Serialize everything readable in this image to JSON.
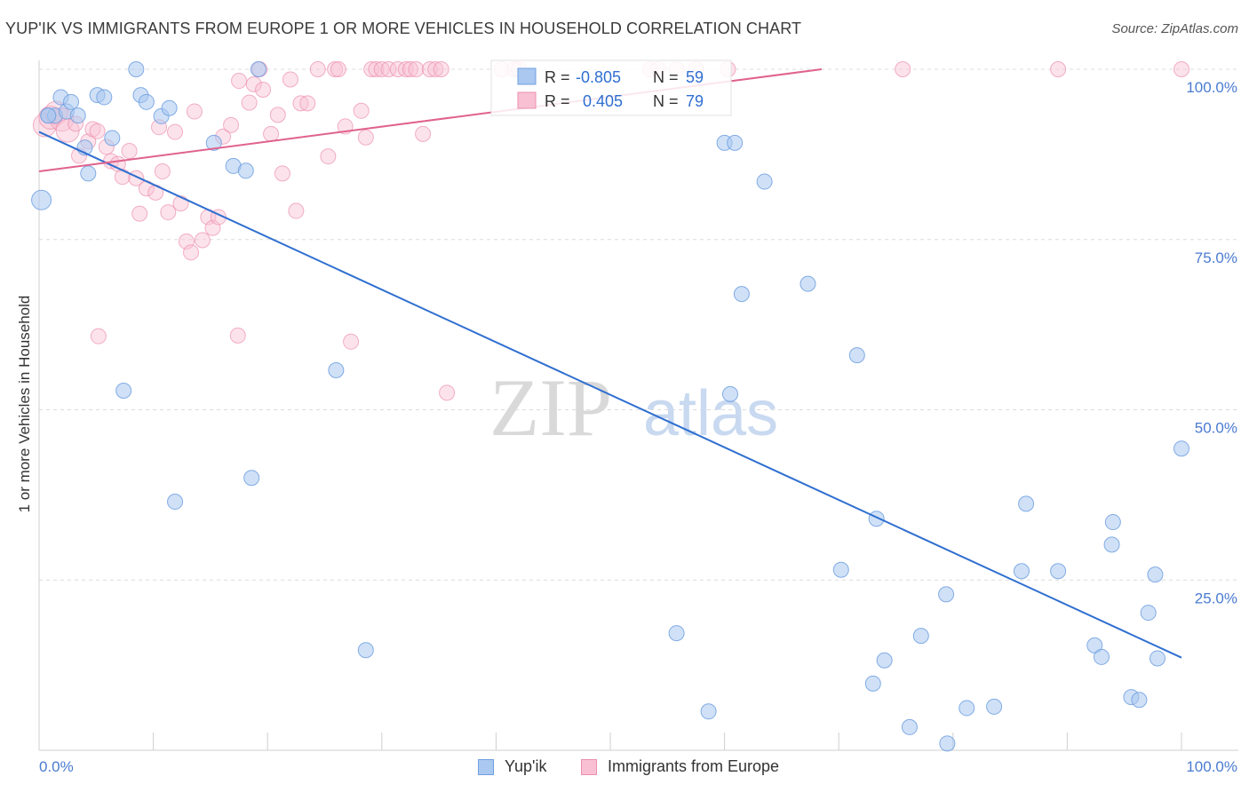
{
  "header": {
    "title": "YUP'IK VS IMMIGRANTS FROM EUROPE 1 OR MORE VEHICLES IN HOUSEHOLD CORRELATION CHART",
    "source": "Source: ZipAtlas.com"
  },
  "watermark": {
    "zip": "ZIP",
    "atlas": "atlas"
  },
  "legend_box": {
    "rows": [
      {
        "r_label": "R =",
        "r_value": "-0.805",
        "n_label": "N =",
        "n_value": "59"
      },
      {
        "r_label": "R =",
        "r_value": "0.405",
        "n_label": "N =",
        "n_value": "79"
      }
    ]
  },
  "bottom_legend": {
    "series1": "Yup'ik",
    "series2": "Immigrants from Europe"
  },
  "colors": {
    "blue_fill": "#aac8f0",
    "blue_stroke": "#6f9fe0",
    "blue_line": "#2f6fd0",
    "pink_fill": "#f8c0d2",
    "pink_stroke": "#ec8fae",
    "pink_line": "#e0628e",
    "tick_text": "#4a7bd0"
  },
  "chart_data": {
    "type": "scatter",
    "title": "YUP'IK VS IMMIGRANTS FROM EUROPE 1 OR MORE VEHICLES IN HOUSEHOLD CORRELATION CHART",
    "xlabel": "",
    "ylabel": "1 or more Vehicles in Household",
    "xlim": [
      0,
      100
    ],
    "ylim": [
      0,
      100
    ],
    "x_tick_labels": [
      "0.0%",
      "100.0%"
    ],
    "y_tick_labels": [
      "25.0%",
      "50.0%",
      "75.0%",
      "100.0%"
    ],
    "y_tick_values": [
      25,
      50,
      75,
      100
    ],
    "series": [
      {
        "name": "Yup'ik",
        "r": -0.805,
        "n": 59,
        "trend": {
          "x": [
            0,
            100
          ],
          "y": [
            90.8,
            13.6
          ]
        },
        "points": [
          {
            "x": 0.2,
            "y": 80.8
          },
          {
            "x": 0.8,
            "y": 93.2
          },
          {
            "x": 1.4,
            "y": 93.2
          },
          {
            "x": 1.9,
            "y": 95.9
          },
          {
            "x": 2.4,
            "y": 93.8
          },
          {
            "x": 2.8,
            "y": 95.2
          },
          {
            "x": 3.4,
            "y": 93.2
          },
          {
            "x": 4.0,
            "y": 88.5
          },
          {
            "x": 4.3,
            "y": 84.7
          },
          {
            "x": 5.1,
            "y": 96.2
          },
          {
            "x": 5.7,
            "y": 95.9
          },
          {
            "x": 6.4,
            "y": 89.9
          },
          {
            "x": 7.4,
            "y": 52.8
          },
          {
            "x": 8.5,
            "y": 100
          },
          {
            "x": 8.9,
            "y": 96.2
          },
          {
            "x": 9.4,
            "y": 95.2
          },
          {
            "x": 10.7,
            "y": 93.1
          },
          {
            "x": 11.4,
            "y": 94.3
          },
          {
            "x": 11.9,
            "y": 36.5
          },
          {
            "x": 15.3,
            "y": 89.2
          },
          {
            "x": 17.0,
            "y": 85.8
          },
          {
            "x": 18.1,
            "y": 85.1
          },
          {
            "x": 18.6,
            "y": 40.0
          },
          {
            "x": 19.2,
            "y": 100
          },
          {
            "x": 26.0,
            "y": 55.8
          },
          {
            "x": 28.6,
            "y": 14.7
          },
          {
            "x": 55.8,
            "y": 17.2
          },
          {
            "x": 58.6,
            "y": 5.7
          },
          {
            "x": 60.0,
            "y": 89.2
          },
          {
            "x": 60.5,
            "y": 52.3
          },
          {
            "x": 60.9,
            "y": 89.2
          },
          {
            "x": 61.5,
            "y": 67.0
          },
          {
            "x": 63.5,
            "y": 83.5
          },
          {
            "x": 67.3,
            "y": 68.5
          },
          {
            "x": 70.2,
            "y": 26.5
          },
          {
            "x": 71.6,
            "y": 58.0
          },
          {
            "x": 73.0,
            "y": 9.8
          },
          {
            "x": 73.3,
            "y": 34.0
          },
          {
            "x": 74.0,
            "y": 13.2
          },
          {
            "x": 76.2,
            "y": 3.4
          },
          {
            "x": 77.2,
            "y": 16.8
          },
          {
            "x": 79.4,
            "y": 22.9
          },
          {
            "x": 79.5,
            "y": 1.0
          },
          {
            "x": 81.2,
            "y": 6.2
          },
          {
            "x": 83.6,
            "y": 6.4
          },
          {
            "x": 86.0,
            "y": 26.3
          },
          {
            "x": 86.4,
            "y": 36.2
          },
          {
            "x": 89.2,
            "y": 26.3
          },
          {
            "x": 92.4,
            "y": 15.4
          },
          {
            "x": 93.0,
            "y": 13.7
          },
          {
            "x": 93.9,
            "y": 30.2
          },
          {
            "x": 94.0,
            "y": 33.5
          },
          {
            "x": 95.6,
            "y": 7.8
          },
          {
            "x": 96.3,
            "y": 7.4
          },
          {
            "x": 97.1,
            "y": 20.2
          },
          {
            "x": 97.7,
            "y": 25.8
          },
          {
            "x": 97.9,
            "y": 13.5
          },
          {
            "x": 100.0,
            "y": 44.3
          },
          {
            "x": 0.8,
            "y": 93.2
          }
        ]
      },
      {
        "name": "Immigrants from Europe",
        "r": 0.405,
        "n": 79,
        "trend": {
          "x": [
            0,
            68.5
          ],
          "y": [
            85.0,
            100
          ]
        },
        "points": [
          {
            "x": 0.5,
            "y": 91.8
          },
          {
            "x": 1.0,
            "y": 92.9
          },
          {
            "x": 1.5,
            "y": 93.6
          },
          {
            "x": 2.0,
            "y": 92.6
          },
          {
            "x": 2.5,
            "y": 91.0
          },
          {
            "x": 3.2,
            "y": 92.0
          },
          {
            "x": 3.5,
            "y": 87.3
          },
          {
            "x": 4.3,
            "y": 89.4
          },
          {
            "x": 4.7,
            "y": 91.2
          },
          {
            "x": 5.1,
            "y": 90.9
          },
          {
            "x": 5.2,
            "y": 60.8
          },
          {
            "x": 5.9,
            "y": 88.6
          },
          {
            "x": 6.3,
            "y": 86.5
          },
          {
            "x": 6.9,
            "y": 86.1
          },
          {
            "x": 7.3,
            "y": 84.2
          },
          {
            "x": 7.9,
            "y": 88.0
          },
          {
            "x": 8.5,
            "y": 84.0
          },
          {
            "x": 8.8,
            "y": 78.8
          },
          {
            "x": 9.4,
            "y": 82.5
          },
          {
            "x": 10.2,
            "y": 81.9
          },
          {
            "x": 10.5,
            "y": 91.5
          },
          {
            "x": 10.8,
            "y": 85.0
          },
          {
            "x": 11.3,
            "y": 79.0
          },
          {
            "x": 11.9,
            "y": 90.8
          },
          {
            "x": 12.4,
            "y": 80.3
          },
          {
            "x": 12.9,
            "y": 74.7
          },
          {
            "x": 13.3,
            "y": 73.1
          },
          {
            "x": 13.6,
            "y": 93.8
          },
          {
            "x": 14.3,
            "y": 74.9
          },
          {
            "x": 14.8,
            "y": 78.3
          },
          {
            "x": 15.2,
            "y": 76.7
          },
          {
            "x": 15.7,
            "y": 78.3
          },
          {
            "x": 16.1,
            "y": 90.1
          },
          {
            "x": 16.8,
            "y": 91.8
          },
          {
            "x": 17.4,
            "y": 60.9
          },
          {
            "x": 17.5,
            "y": 98.3
          },
          {
            "x": 18.4,
            "y": 95.1
          },
          {
            "x": 18.8,
            "y": 97.8
          },
          {
            "x": 19.3,
            "y": 100
          },
          {
            "x": 19.6,
            "y": 97.0
          },
          {
            "x": 20.3,
            "y": 90.5
          },
          {
            "x": 20.9,
            "y": 93.3
          },
          {
            "x": 21.3,
            "y": 84.7
          },
          {
            "x": 22.0,
            "y": 98.5
          },
          {
            "x": 22.5,
            "y": 79.2
          },
          {
            "x": 22.9,
            "y": 95.0
          },
          {
            "x": 23.5,
            "y": 95.0
          },
          {
            "x": 24.4,
            "y": 100
          },
          {
            "x": 25.3,
            "y": 87.2
          },
          {
            "x": 25.9,
            "y": 100
          },
          {
            "x": 26.2,
            "y": 100
          },
          {
            "x": 26.8,
            "y": 91.6
          },
          {
            "x": 27.3,
            "y": 60.0
          },
          {
            "x": 28.2,
            "y": 93.9
          },
          {
            "x": 28.6,
            "y": 90.0
          },
          {
            "x": 29.1,
            "y": 100
          },
          {
            "x": 29.5,
            "y": 100
          },
          {
            "x": 30.0,
            "y": 100
          },
          {
            "x": 30.6,
            "y": 100
          },
          {
            "x": 31.4,
            "y": 100
          },
          {
            "x": 32.1,
            "y": 100
          },
          {
            "x": 32.5,
            "y": 100
          },
          {
            "x": 33.0,
            "y": 100
          },
          {
            "x": 33.6,
            "y": 90.5
          },
          {
            "x": 34.2,
            "y": 100
          },
          {
            "x": 34.7,
            "y": 100
          },
          {
            "x": 35.2,
            "y": 100
          },
          {
            "x": 35.7,
            "y": 52.5
          },
          {
            "x": 40.5,
            "y": 100
          },
          {
            "x": 41.6,
            "y": 100
          },
          {
            "x": 42.0,
            "y": 100
          },
          {
            "x": 53.5,
            "y": 100
          },
          {
            "x": 54.2,
            "y": 100
          },
          {
            "x": 55.8,
            "y": 100
          },
          {
            "x": 57.5,
            "y": 100
          },
          {
            "x": 60.3,
            "y": 100
          },
          {
            "x": 75.6,
            "y": 100
          },
          {
            "x": 89.2,
            "y": 100
          },
          {
            "x": 100.0,
            "y": 100
          }
        ]
      }
    ]
  }
}
